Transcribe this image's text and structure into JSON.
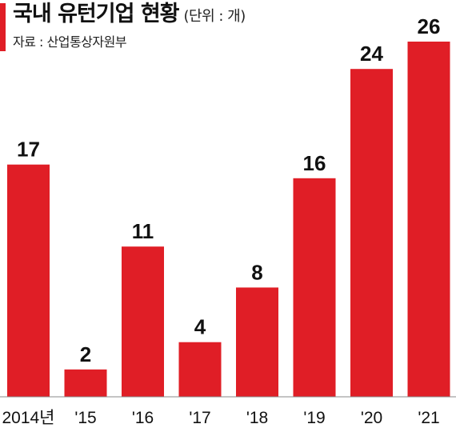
{
  "header": {
    "title": "국내 유턴기업 현황",
    "unit": "(단위 : 개)",
    "source": "자료 : 산업통상자원부"
  },
  "colors": {
    "bar": "#e01e26",
    "accent_mark": "#e01e26",
    "baseline": "#888888",
    "text": "#111111"
  },
  "chart_data": {
    "type": "bar",
    "title": "국내 유턴기업 현황",
    "unit": "(단위 : 개)",
    "source": "자료 : 산업통상자원부",
    "categories": [
      "2014년",
      "'15",
      "'16",
      "'17",
      "'18",
      "'19",
      "'20",
      "'21"
    ],
    "values": [
      17,
      2,
      11,
      4,
      8,
      16,
      24,
      26
    ],
    "ylim": [
      0,
      26
    ],
    "data_labels": [
      "17",
      "2",
      "11",
      "4",
      "8",
      "16",
      "24",
      "26"
    ],
    "grid": false,
    "legend": "none"
  }
}
